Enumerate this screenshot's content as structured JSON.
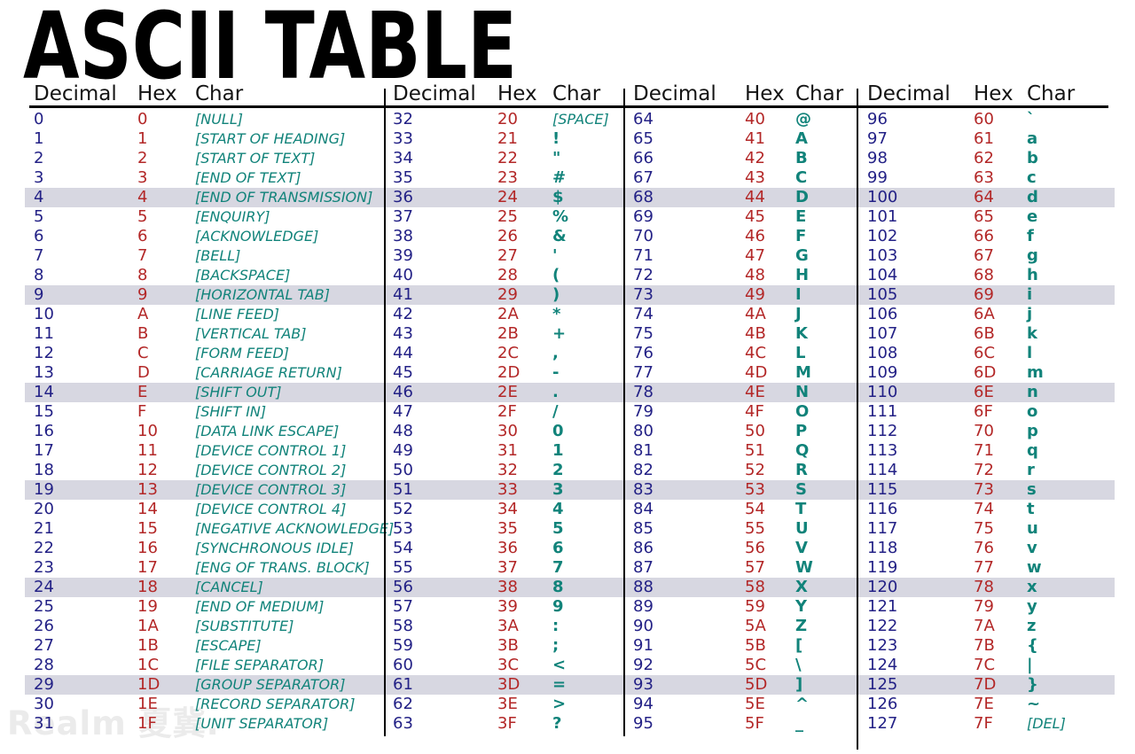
{
  "title": "ASCII TABLE",
  "watermark": "Realm 夏冀.",
  "column_headers": [
    "Decimal",
    "Hex",
    "Char"
  ],
  "colors": {
    "decimal": "#232186",
    "hex": "#b32727",
    "char": "#11837a",
    "highlight": "#d7d7e1",
    "rule": "#000000"
  },
  "highlighted_row_indices": [
    4,
    9,
    14,
    19,
    24,
    29
  ],
  "table": {
    "columns": [
      {
        "rows": [
          {
            "dec": "0",
            "hex": "0",
            "char": "[NULL]",
            "type": "name"
          },
          {
            "dec": "1",
            "hex": "1",
            "char": "[START OF HEADING]",
            "type": "name"
          },
          {
            "dec": "2",
            "hex": "2",
            "char": "[START OF TEXT]",
            "type": "name"
          },
          {
            "dec": "3",
            "hex": "3",
            "char": "[END OF TEXT]",
            "type": "name"
          },
          {
            "dec": "4",
            "hex": "4",
            "char": "[END OF TRANSMISSION]",
            "type": "name"
          },
          {
            "dec": "5",
            "hex": "5",
            "char": "[ENQUIRY]",
            "type": "name"
          },
          {
            "dec": "6",
            "hex": "6",
            "char": "[ACKNOWLEDGE]",
            "type": "name"
          },
          {
            "dec": "7",
            "hex": "7",
            "char": "[BELL]",
            "type": "name"
          },
          {
            "dec": "8",
            "hex": "8",
            "char": "[BACKSPACE]",
            "type": "name"
          },
          {
            "dec": "9",
            "hex": "9",
            "char": "[HORIZONTAL TAB]",
            "type": "name"
          },
          {
            "dec": "10",
            "hex": "A",
            "char": "[LINE FEED]",
            "type": "name"
          },
          {
            "dec": "11",
            "hex": "B",
            "char": "[VERTICAL TAB]",
            "type": "name"
          },
          {
            "dec": "12",
            "hex": "C",
            "char": "[FORM FEED]",
            "type": "name"
          },
          {
            "dec": "13",
            "hex": "D",
            "char": "[CARRIAGE RETURN]",
            "type": "name"
          },
          {
            "dec": "14",
            "hex": "E",
            "char": "[SHIFT OUT]",
            "type": "name"
          },
          {
            "dec": "15",
            "hex": "F",
            "char": "[SHIFT IN]",
            "type": "name"
          },
          {
            "dec": "16",
            "hex": "10",
            "char": "[DATA LINK ESCAPE]",
            "type": "name"
          },
          {
            "dec": "17",
            "hex": "11",
            "char": "[DEVICE CONTROL 1]",
            "type": "name"
          },
          {
            "dec": "18",
            "hex": "12",
            "char": "[DEVICE CONTROL 2]",
            "type": "name"
          },
          {
            "dec": "19",
            "hex": "13",
            "char": "[DEVICE CONTROL 3]",
            "type": "name"
          },
          {
            "dec": "20",
            "hex": "14",
            "char": "[DEVICE CONTROL 4]",
            "type": "name"
          },
          {
            "dec": "21",
            "hex": "15",
            "char": "[NEGATIVE ACKNOWLEDGE]",
            "type": "name"
          },
          {
            "dec": "22",
            "hex": "16",
            "char": "[SYNCHRONOUS IDLE]",
            "type": "name"
          },
          {
            "dec": "23",
            "hex": "17",
            "char": "[ENG OF TRANS. BLOCK]",
            "type": "name"
          },
          {
            "dec": "24",
            "hex": "18",
            "char": "[CANCEL]",
            "type": "name"
          },
          {
            "dec": "25",
            "hex": "19",
            "char": "[END OF MEDIUM]",
            "type": "name"
          },
          {
            "dec": "26",
            "hex": "1A",
            "char": "[SUBSTITUTE]",
            "type": "name"
          },
          {
            "dec": "27",
            "hex": "1B",
            "char": "[ESCAPE]",
            "type": "name"
          },
          {
            "dec": "28",
            "hex": "1C",
            "char": "[FILE SEPARATOR]",
            "type": "name"
          },
          {
            "dec": "29",
            "hex": "1D",
            "char": "[GROUP SEPARATOR]",
            "type": "name"
          },
          {
            "dec": "30",
            "hex": "1E",
            "char": "[RECORD SEPARATOR]",
            "type": "name"
          },
          {
            "dec": "31",
            "hex": "1F",
            "char": "[UNIT SEPARATOR]",
            "type": "name"
          }
        ]
      },
      {
        "rows": [
          {
            "dec": "32",
            "hex": "20",
            "char": "[SPACE]",
            "type": "name"
          },
          {
            "dec": "33",
            "hex": "21",
            "char": "!",
            "type": "glyph"
          },
          {
            "dec": "34",
            "hex": "22",
            "char": "\"",
            "type": "glyph"
          },
          {
            "dec": "35",
            "hex": "23",
            "char": "#",
            "type": "glyph"
          },
          {
            "dec": "36",
            "hex": "24",
            "char": "$",
            "type": "glyph"
          },
          {
            "dec": "37",
            "hex": "25",
            "char": "%",
            "type": "glyph"
          },
          {
            "dec": "38",
            "hex": "26",
            "char": "&",
            "type": "glyph"
          },
          {
            "dec": "39",
            "hex": "27",
            "char": "'",
            "type": "glyph"
          },
          {
            "dec": "40",
            "hex": "28",
            "char": "(",
            "type": "glyph"
          },
          {
            "dec": "41",
            "hex": "29",
            "char": ")",
            "type": "glyph"
          },
          {
            "dec": "42",
            "hex": "2A",
            "char": "*",
            "type": "glyph"
          },
          {
            "dec": "43",
            "hex": "2B",
            "char": "+",
            "type": "glyph"
          },
          {
            "dec": "44",
            "hex": "2C",
            "char": ",",
            "type": "glyph"
          },
          {
            "dec": "45",
            "hex": "2D",
            "char": "-",
            "type": "glyph"
          },
          {
            "dec": "46",
            "hex": "2E",
            "char": ".",
            "type": "glyph"
          },
          {
            "dec": "47",
            "hex": "2F",
            "char": "/",
            "type": "glyph"
          },
          {
            "dec": "48",
            "hex": "30",
            "char": "0",
            "type": "glyph"
          },
          {
            "dec": "49",
            "hex": "31",
            "char": "1",
            "type": "glyph"
          },
          {
            "dec": "50",
            "hex": "32",
            "char": "2",
            "type": "glyph"
          },
          {
            "dec": "51",
            "hex": "33",
            "char": "3",
            "type": "glyph"
          },
          {
            "dec": "52",
            "hex": "34",
            "char": "4",
            "type": "glyph"
          },
          {
            "dec": "53",
            "hex": "35",
            "char": "5",
            "type": "glyph"
          },
          {
            "dec": "54",
            "hex": "36",
            "char": "6",
            "type": "glyph"
          },
          {
            "dec": "55",
            "hex": "37",
            "char": "7",
            "type": "glyph"
          },
          {
            "dec": "56",
            "hex": "38",
            "char": "8",
            "type": "glyph"
          },
          {
            "dec": "57",
            "hex": "39",
            "char": "9",
            "type": "glyph"
          },
          {
            "dec": "58",
            "hex": "3A",
            "char": ":",
            "type": "glyph"
          },
          {
            "dec": "59",
            "hex": "3B",
            "char": ";",
            "type": "glyph"
          },
          {
            "dec": "60",
            "hex": "3C",
            "char": "<",
            "type": "glyph"
          },
          {
            "dec": "61",
            "hex": "3D",
            "char": "=",
            "type": "glyph"
          },
          {
            "dec": "62",
            "hex": "3E",
            "char": ">",
            "type": "glyph"
          },
          {
            "dec": "63",
            "hex": "3F",
            "char": "?",
            "type": "glyph"
          }
        ]
      },
      {
        "rows": [
          {
            "dec": "64",
            "hex": "40",
            "char": "@",
            "type": "glyph"
          },
          {
            "dec": "65",
            "hex": "41",
            "char": "A",
            "type": "glyph"
          },
          {
            "dec": "66",
            "hex": "42",
            "char": "B",
            "type": "glyph"
          },
          {
            "dec": "67",
            "hex": "43",
            "char": "C",
            "type": "glyph"
          },
          {
            "dec": "68",
            "hex": "44",
            "char": "D",
            "type": "glyph"
          },
          {
            "dec": "69",
            "hex": "45",
            "char": "E",
            "type": "glyph"
          },
          {
            "dec": "70",
            "hex": "46",
            "char": "F",
            "type": "glyph"
          },
          {
            "dec": "71",
            "hex": "47",
            "char": "G",
            "type": "glyph"
          },
          {
            "dec": "72",
            "hex": "48",
            "char": "H",
            "type": "glyph"
          },
          {
            "dec": "73",
            "hex": "49",
            "char": "I",
            "type": "glyph"
          },
          {
            "dec": "74",
            "hex": "4A",
            "char": "J",
            "type": "glyph"
          },
          {
            "dec": "75",
            "hex": "4B",
            "char": "K",
            "type": "glyph"
          },
          {
            "dec": "76",
            "hex": "4C",
            "char": "L",
            "type": "glyph"
          },
          {
            "dec": "77",
            "hex": "4D",
            "char": "M",
            "type": "glyph"
          },
          {
            "dec": "78",
            "hex": "4E",
            "char": "N",
            "type": "glyph"
          },
          {
            "dec": "79",
            "hex": "4F",
            "char": "O",
            "type": "glyph"
          },
          {
            "dec": "80",
            "hex": "50",
            "char": "P",
            "type": "glyph"
          },
          {
            "dec": "81",
            "hex": "51",
            "char": "Q",
            "type": "glyph"
          },
          {
            "dec": "82",
            "hex": "52",
            "char": "R",
            "type": "glyph"
          },
          {
            "dec": "83",
            "hex": "53",
            "char": "S",
            "type": "glyph"
          },
          {
            "dec": "84",
            "hex": "54",
            "char": "T",
            "type": "glyph"
          },
          {
            "dec": "85",
            "hex": "55",
            "char": "U",
            "type": "glyph"
          },
          {
            "dec": "86",
            "hex": "56",
            "char": "V",
            "type": "glyph"
          },
          {
            "dec": "87",
            "hex": "57",
            "char": "W",
            "type": "glyph"
          },
          {
            "dec": "88",
            "hex": "58",
            "char": "X",
            "type": "glyph"
          },
          {
            "dec": "89",
            "hex": "59",
            "char": "Y",
            "type": "glyph"
          },
          {
            "dec": "90",
            "hex": "5A",
            "char": "Z",
            "type": "glyph"
          },
          {
            "dec": "91",
            "hex": "5B",
            "char": "[",
            "type": "glyph"
          },
          {
            "dec": "92",
            "hex": "5C",
            "char": "\\",
            "type": "glyph"
          },
          {
            "dec": "93",
            "hex": "5D",
            "char": "]",
            "type": "glyph"
          },
          {
            "dec": "94",
            "hex": "5E",
            "char": "^",
            "type": "glyph"
          },
          {
            "dec": "95",
            "hex": "5F",
            "char": "_",
            "type": "glyph"
          }
        ]
      },
      {
        "rows": [
          {
            "dec": "96",
            "hex": "60",
            "char": "`",
            "type": "glyph"
          },
          {
            "dec": "97",
            "hex": "61",
            "char": "a",
            "type": "glyph"
          },
          {
            "dec": "98",
            "hex": "62",
            "char": "b",
            "type": "glyph"
          },
          {
            "dec": "99",
            "hex": "63",
            "char": "c",
            "type": "glyph"
          },
          {
            "dec": "100",
            "hex": "64",
            "char": "d",
            "type": "glyph"
          },
          {
            "dec": "101",
            "hex": "65",
            "char": "e",
            "type": "glyph"
          },
          {
            "dec": "102",
            "hex": "66",
            "char": "f",
            "type": "glyph"
          },
          {
            "dec": "103",
            "hex": "67",
            "char": "g",
            "type": "glyph"
          },
          {
            "dec": "104",
            "hex": "68",
            "char": "h",
            "type": "glyph"
          },
          {
            "dec": "105",
            "hex": "69",
            "char": "i",
            "type": "glyph"
          },
          {
            "dec": "106",
            "hex": "6A",
            "char": "j",
            "type": "glyph"
          },
          {
            "dec": "107",
            "hex": "6B",
            "char": "k",
            "type": "glyph"
          },
          {
            "dec": "108",
            "hex": "6C",
            "char": "l",
            "type": "glyph"
          },
          {
            "dec": "109",
            "hex": "6D",
            "char": "m",
            "type": "glyph"
          },
          {
            "dec": "110",
            "hex": "6E",
            "char": "n",
            "type": "glyph"
          },
          {
            "dec": "111",
            "hex": "6F",
            "char": "o",
            "type": "glyph"
          },
          {
            "dec": "112",
            "hex": "70",
            "char": "p",
            "type": "glyph"
          },
          {
            "dec": "113",
            "hex": "71",
            "char": "q",
            "type": "glyph"
          },
          {
            "dec": "114",
            "hex": "72",
            "char": "r",
            "type": "glyph"
          },
          {
            "dec": "115",
            "hex": "73",
            "char": "s",
            "type": "glyph"
          },
          {
            "dec": "116",
            "hex": "74",
            "char": "t",
            "type": "glyph"
          },
          {
            "dec": "117",
            "hex": "75",
            "char": "u",
            "type": "glyph"
          },
          {
            "dec": "118",
            "hex": "76",
            "char": "v",
            "type": "glyph"
          },
          {
            "dec": "119",
            "hex": "77",
            "char": "w",
            "type": "glyph"
          },
          {
            "dec": "120",
            "hex": "78",
            "char": "x",
            "type": "glyph"
          },
          {
            "dec": "121",
            "hex": "79",
            "char": "y",
            "type": "glyph"
          },
          {
            "dec": "122",
            "hex": "7A",
            "char": "z",
            "type": "glyph"
          },
          {
            "dec": "123",
            "hex": "7B",
            "char": "{",
            "type": "glyph"
          },
          {
            "dec": "124",
            "hex": "7C",
            "char": "|",
            "type": "glyph"
          },
          {
            "dec": "125",
            "hex": "7D",
            "char": "}",
            "type": "glyph"
          },
          {
            "dec": "126",
            "hex": "7E",
            "char": "~",
            "type": "glyph"
          },
          {
            "dec": "127",
            "hex": "7F",
            "char": "[DEL]",
            "type": "name"
          }
        ]
      }
    ]
  }
}
